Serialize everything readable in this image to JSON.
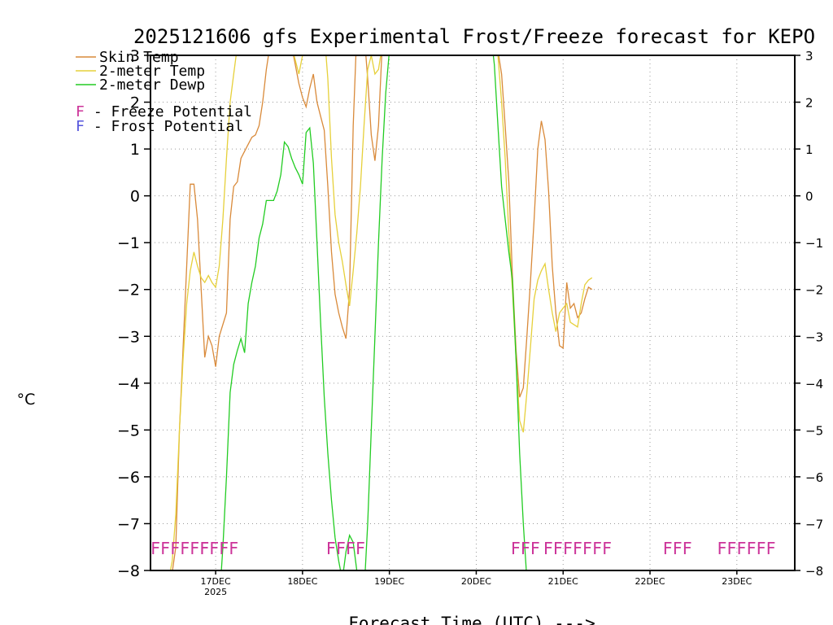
{
  "chart_data": {
    "type": "line",
    "title": "2025121606 gfs Experimental Frost/Freeze forecast for KEPO",
    "xlabel": "Forecast Time (UTC) --->",
    "ylabel": "°C",
    "xlim": [
      0,
      178
    ],
    "ylim": [
      -8,
      3
    ],
    "yticks": [
      3,
      2,
      1,
      0,
      -1,
      -2,
      -3,
      -4,
      -5,
      -6,
      -7,
      -8
    ],
    "yticks_right": [
      3,
      2,
      1,
      0,
      -1,
      -2,
      -3,
      -4,
      -5,
      -6,
      -7,
      -8
    ],
    "xticks": [
      {
        "x": 18,
        "label": "17DEC",
        "sublabel": "2025"
      },
      {
        "x": 42,
        "label": "18DEC",
        "sublabel": ""
      },
      {
        "x": 66,
        "label": "19DEC",
        "sublabel": ""
      },
      {
        "x": 90,
        "label": "20DEC",
        "sublabel": ""
      },
      {
        "x": 114,
        "label": "21DEC",
        "sublabel": ""
      },
      {
        "x": 138,
        "label": "22DEC",
        "sublabel": ""
      },
      {
        "x": 162,
        "label": "23DEC",
        "sublabel": ""
      }
    ],
    "grid": true,
    "colors": {
      "skin": "#d98a3a",
      "temp": "#e6d03a",
      "dewp": "#22cc22",
      "freeze": "#cc3399",
      "frost": "#5555dd"
    },
    "legend": {
      "series": [
        "Skin Temp",
        "2-meter Temp",
        "2-meter Dewp"
      ],
      "freeze_letter": "F",
      "freeze_label": " - Freeze Potential",
      "frost_letter": "F",
      "frost_label": " - Frost Potential"
    },
    "series": [
      {
        "name": "Skin Temp",
        "points": [
          [
            0,
            -8
          ],
          [
            1,
            -8.4
          ],
          [
            3,
            -8.6
          ],
          [
            5,
            -8.6
          ],
          [
            7,
            -7.5
          ],
          [
            8,
            -5
          ],
          [
            10,
            -1.5
          ],
          [
            11,
            0.25
          ],
          [
            12,
            0.25
          ],
          [
            13,
            -0.5
          ],
          [
            14,
            -2
          ],
          [
            15,
            -3.45
          ],
          [
            16,
            -3
          ],
          [
            17,
            -3.2
          ],
          [
            18,
            -3.65
          ],
          [
            19,
            -3
          ],
          [
            21,
            -2.5
          ],
          [
            22,
            -0.5
          ],
          [
            23,
            0.2
          ],
          [
            24,
            0.3
          ],
          [
            25,
            0.8
          ],
          [
            27,
            1.1
          ],
          [
            28,
            1.25
          ],
          [
            29,
            1.3
          ],
          [
            30,
            1.5
          ],
          [
            31,
            2.0
          ],
          [
            32,
            2.7
          ],
          [
            33,
            3.2
          ],
          [
            34,
            3.5
          ],
          [
            38,
            3.5
          ],
          [
            39,
            3.2
          ],
          [
            40,
            2.8
          ],
          [
            41,
            2.4
          ],
          [
            42,
            2.1
          ],
          [
            43,
            1.9
          ],
          [
            44,
            2.3
          ],
          [
            45,
            2.6
          ],
          [
            46,
            2.0
          ],
          [
            47,
            1.7
          ],
          [
            48,
            1.4
          ],
          [
            49,
            0.2
          ],
          [
            50,
            -1.2
          ],
          [
            51,
            -2.1
          ],
          [
            52,
            -2.5
          ],
          [
            53,
            -2.8
          ],
          [
            54,
            -3.05
          ],
          [
            55,
            -2.0
          ],
          [
            56,
            1.5
          ],
          [
            57,
            3.5
          ],
          [
            59,
            3.5
          ],
          [
            60,
            2.5
          ],
          [
            61,
            1.3
          ],
          [
            62,
            0.75
          ],
          [
            63,
            1.5
          ],
          [
            64,
            3.2
          ],
          [
            65,
            3.5
          ]
        ]
      },
      {
        "name": "2-meter Temp",
        "points": [
          [
            5,
            -8.2
          ],
          [
            6,
            -7.8
          ],
          [
            7,
            -6.8
          ],
          [
            8,
            -5.0
          ],
          [
            9,
            -3.5
          ],
          [
            10,
            -2.3
          ],
          [
            11,
            -1.6
          ],
          [
            12,
            -1.2
          ],
          [
            13,
            -1.5
          ],
          [
            14,
            -1.75
          ],
          [
            15,
            -1.85
          ],
          [
            16,
            -1.7
          ],
          [
            17,
            -1.85
          ],
          [
            18,
            -1.95
          ],
          [
            19,
            -1.5
          ],
          [
            20,
            -0.5
          ],
          [
            21,
            0.8
          ],
          [
            22,
            2.0
          ],
          [
            23,
            2.6
          ],
          [
            24,
            3.2
          ],
          [
            25,
            3.5
          ],
          [
            38,
            3.5
          ],
          [
            39,
            3.2
          ],
          [
            40,
            2.9
          ],
          [
            41,
            2.6
          ],
          [
            42,
            3.0
          ],
          [
            43,
            3.3
          ],
          [
            44,
            3.5
          ],
          [
            48,
            3.5
          ],
          [
            49,
            2.5
          ],
          [
            50,
            0.8
          ],
          [
            51,
            -0.4
          ],
          [
            52,
            -1.0
          ],
          [
            53,
            -1.4
          ],
          [
            54,
            -1.9
          ],
          [
            55,
            -2.35
          ],
          [
            56,
            -1.6
          ],
          [
            57,
            -0.8
          ],
          [
            58,
            0.2
          ],
          [
            59,
            1.5
          ],
          [
            60,
            2.7
          ],
          [
            61,
            3.0
          ],
          [
            62,
            2.6
          ],
          [
            63,
            2.7
          ],
          [
            64,
            3.2
          ],
          [
            65,
            3.5
          ]
        ]
      },
      {
        "name": "2-meter Dewp",
        "points": [
          [
            19,
            -8.7
          ],
          [
            20,
            -7.5
          ],
          [
            21,
            -6
          ],
          [
            22,
            -4.2
          ],
          [
            23,
            -3.6
          ],
          [
            24,
            -3.3
          ],
          [
            25,
            -3.05
          ],
          [
            26,
            -3.35
          ],
          [
            27,
            -2.3
          ],
          [
            28,
            -1.85
          ],
          [
            29,
            -1.5
          ],
          [
            30,
            -0.9
          ],
          [
            31,
            -0.6
          ],
          [
            32,
            -0.1
          ],
          [
            33,
            -0.1
          ],
          [
            34,
            -0.1
          ],
          [
            35,
            0.1
          ],
          [
            36,
            0.45
          ],
          [
            37,
            1.15
          ],
          [
            38,
            1.05
          ],
          [
            39,
            0.8
          ],
          [
            40,
            0.6
          ],
          [
            41,
            0.45
          ],
          [
            42,
            0.25
          ],
          [
            43,
            1.35
          ],
          [
            44,
            1.45
          ],
          [
            45,
            0.7
          ],
          [
            46,
            -1.0
          ],
          [
            47,
            -2.7
          ],
          [
            48,
            -4.3
          ],
          [
            49,
            -5.5
          ],
          [
            50,
            -6.5
          ],
          [
            51,
            -7.3
          ],
          [
            52,
            -7.8
          ],
          [
            53,
            -8.2
          ],
          [
            54,
            -7.6
          ],
          [
            55,
            -7.25
          ],
          [
            56,
            -7.4
          ],
          [
            57,
            -8.0
          ],
          [
            58,
            -8.5
          ],
          [
            59,
            -8.5
          ],
          [
            60,
            -7.0
          ],
          [
            61,
            -5.0
          ],
          [
            62,
            -3.0
          ],
          [
            63,
            -1.0
          ],
          [
            64,
            0.8
          ],
          [
            65,
            2.2
          ],
          [
            66,
            3.1
          ],
          [
            67,
            3.5
          ]
        ]
      },
      {
        "name": "Skin Temp",
        "points": [
          [
            95,
            3.5
          ],
          [
            96,
            3.1
          ],
          [
            97,
            2.6
          ],
          [
            98,
            1.5
          ],
          [
            99,
            0.3
          ],
          [
            100,
            -1.7
          ],
          [
            101,
            -3.3
          ],
          [
            102,
            -4.3
          ],
          [
            103,
            -4.1
          ],
          [
            104,
            -3.0
          ],
          [
            105,
            -1.8
          ],
          [
            106,
            -0.5
          ],
          [
            107,
            1.0
          ],
          [
            108,
            1.6
          ],
          [
            109,
            1.2
          ],
          [
            110,
            0.1
          ],
          [
            111,
            -1.5
          ],
          [
            112,
            -2.5
          ],
          [
            113,
            -3.2
          ],
          [
            114,
            -3.25
          ],
          [
            115,
            -1.85
          ],
          [
            116,
            -2.4
          ],
          [
            117,
            -2.3
          ],
          [
            118,
            -2.6
          ],
          [
            119,
            -2.5
          ],
          [
            120,
            -2.2
          ],
          [
            121,
            -1.95
          ],
          [
            122,
            -2.0
          ]
        ]
      },
      {
        "name": "2-meter Temp",
        "points": [
          [
            95,
            3.5
          ],
          [
            96,
            3.0
          ],
          [
            97,
            2.0
          ],
          [
            98,
            0.8
          ],
          [
            99,
            -0.8
          ],
          [
            100,
            -2.0
          ],
          [
            101,
            -3.5
          ],
          [
            102,
            -4.8
          ],
          [
            103,
            -5.05
          ],
          [
            104,
            -4.2
          ],
          [
            105,
            -3.2
          ],
          [
            106,
            -2.2
          ],
          [
            107,
            -1.8
          ],
          [
            108,
            -1.6
          ],
          [
            109,
            -1.45
          ],
          [
            110,
            -2.0
          ],
          [
            111,
            -2.5
          ],
          [
            112,
            -2.9
          ],
          [
            113,
            -2.5
          ],
          [
            114,
            -2.4
          ],
          [
            115,
            -2.3
          ],
          [
            116,
            -2.7
          ],
          [
            117,
            -2.75
          ],
          [
            118,
            -2.8
          ],
          [
            119,
            -2.3
          ],
          [
            120,
            -1.9
          ],
          [
            121,
            -1.8
          ],
          [
            122,
            -1.75
          ]
        ]
      },
      {
        "name": "2-meter Dewp",
        "points": [
          [
            94,
            3.5
          ],
          [
            95,
            2.8
          ],
          [
            96,
            1.5
          ],
          [
            97,
            0.2
          ],
          [
            98,
            -0.5
          ],
          [
            99,
            -1.2
          ],
          [
            100,
            -1.8
          ],
          [
            101,
            -3.5
          ],
          [
            102,
            -5.5
          ],
          [
            103,
            -7.0
          ],
          [
            104,
            -8.2
          ]
        ]
      }
    ],
    "freeze_flags": [
      {
        "x": 0.0,
        "text": "FFFFFF"
      },
      {
        "x": 13.5,
        "text": "FFFF"
      },
      {
        "x": 48.5,
        "text": "FFFF"
      },
      {
        "x": 99.5,
        "text": "FFF"
      },
      {
        "x": 108.5,
        "text": "FFFFFFF"
      },
      {
        "x": 141.5,
        "text": "FFF"
      },
      {
        "x": 156.5,
        "text": "FFFFFF"
      }
    ]
  }
}
